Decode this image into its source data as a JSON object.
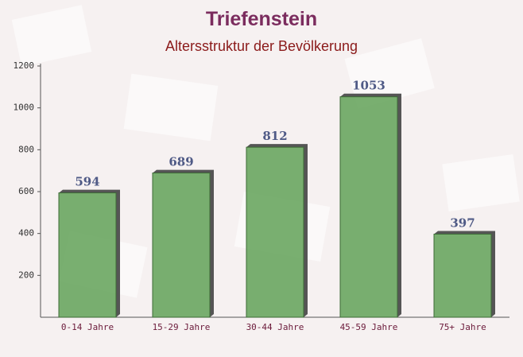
{
  "chart_data": {
    "type": "bar",
    "title": "Triefenstein",
    "subtitle": "Altersstruktur der Bevölkerung",
    "categories": [
      "0-14 Jahre",
      "15-29 Jahre",
      "30-44 Jahre",
      "45-59 Jahre",
      "75+ Jahre"
    ],
    "values": [
      594,
      689,
      812,
      1053,
      397
    ],
    "color": "#6aa660",
    "ylim": [
      0,
      1200
    ],
    "yticks": [
      200,
      400,
      600,
      800,
      1000,
      1200
    ]
  }
}
